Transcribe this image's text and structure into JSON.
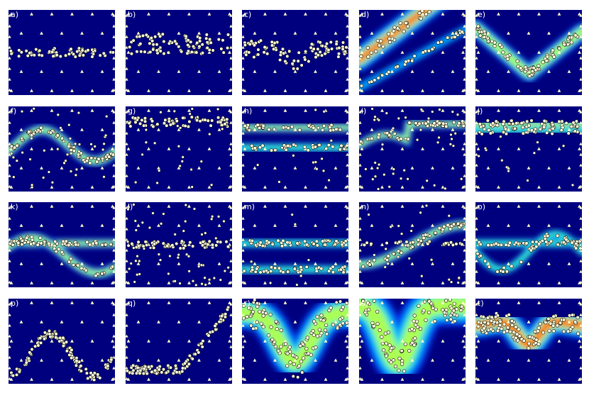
{
  "figure": {
    "panel_labels": [
      "a)",
      "b)",
      "c)",
      "d)",
      "e)",
      "f)",
      "g)",
      "h)",
      "i)",
      "j)",
      "k)",
      "l)",
      "m)",
      "n)",
      "o)",
      "p)",
      "q)",
      "r)",
      "s)",
      "t)"
    ],
    "colors": {
      "background": "#00007f",
      "sensor_marker": "#ffffcc",
      "point_fill": "#ffffdd",
      "point_stroke": "#000000",
      "heat_scale": [
        "#00007f",
        "#0040ff",
        "#00c0ff",
        "#40ffc0",
        "#c0ff40",
        "#ffc000",
        "#ff2000",
        "#a00000"
      ]
    },
    "marker_types": [
      "triangle-icon",
      "circle-icon"
    ]
  }
}
